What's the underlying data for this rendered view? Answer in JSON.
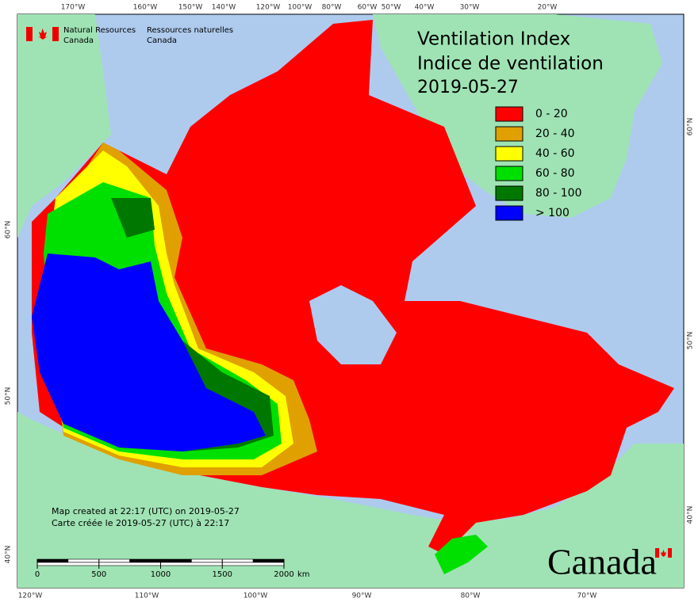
{
  "agency": {
    "en": [
      "Natural Resources",
      "Canada"
    ],
    "fr": [
      "Ressources naturelles",
      "Canada"
    ]
  },
  "title": [
    "Ventilation Index",
    "Indice de ventilation",
    "2019-05-27"
  ],
  "legend": [
    {
      "label": "0 - 20",
      "color": "#ff0000"
    },
    {
      "label": "20 - 40",
      "color": "#e0a000"
    },
    {
      "label": "40 - 60",
      "color": "#ffff00"
    },
    {
      "label": "60 - 80",
      "color": "#00e000"
    },
    {
      "label": "80 - 100",
      "color": "#007800"
    },
    {
      "label": "> 100",
      "color": "#0000ff"
    }
  ],
  "graticule": {
    "top": [
      "170°W",
      "160°W",
      "150°W",
      "140°W",
      "120°W",
      "100°W",
      "80°W",
      "60°W",
      "50°W",
      "40°W",
      "30°W",
      "20°W"
    ],
    "bottom": [
      "120°W",
      "110°W",
      "100°W",
      "90°W",
      "80°W",
      "70°W"
    ],
    "left": [
      "60°N",
      "50°N",
      "40°N"
    ],
    "right": [
      "60°N",
      "50°N",
      "40°N"
    ]
  },
  "footer": [
    "Map created at 22:17 (UTC) on 2019-05-27",
    "Carte créée le 2019-05-27 (UTC) à 22:17"
  ],
  "scale_bar": {
    "ticks": [
      0,
      500,
      1000,
      1500,
      2000
    ],
    "unit": "km"
  },
  "wordmark": "Canada"
}
